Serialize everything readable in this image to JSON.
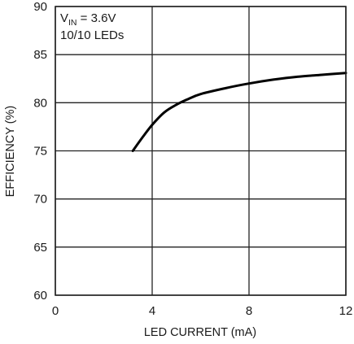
{
  "chart_data": {
    "type": "line",
    "xlabel": "LED CURRENT (mA)",
    "ylabel": "EFFICIENCY (%)",
    "xlim": [
      0,
      12
    ],
    "ylim": [
      60,
      90
    ],
    "x_ticks": [
      0,
      4,
      8,
      12
    ],
    "y_ticks": [
      60,
      65,
      70,
      75,
      80,
      85,
      90
    ],
    "grid": true,
    "annotation": {
      "vin_symbol": "V",
      "vin_subscript": "IN",
      "vin_value": " = 3.6V",
      "leds": "10/10 LEDs"
    },
    "series": [
      {
        "x": [
          3.2,
          3.6,
          4.0,
          4.5,
          5.0,
          5.5,
          6.0,
          7.0,
          8.0,
          9.0,
          10.0,
          11.0,
          12.0
        ],
        "y": [
          75.0,
          76.4,
          77.7,
          79.0,
          79.8,
          80.4,
          80.9,
          81.5,
          82.0,
          82.4,
          82.7,
          82.9,
          83.1
        ]
      }
    ]
  }
}
